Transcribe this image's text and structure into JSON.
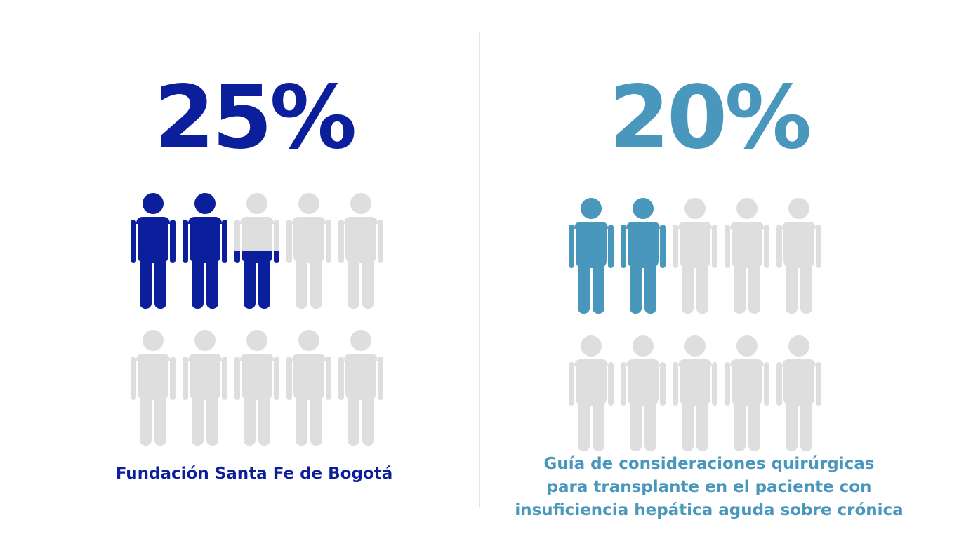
{
  "chart_data": [
    {
      "type": "pictograph",
      "values": [
        25
      ],
      "value_labels": [
        "25%"
      ],
      "color": "#0b1e9b",
      "caption": [
        "Fundación Santa Fe de Bogotá"
      ]
    },
    {
      "type": "pictograph",
      "values": [
        20
      ],
      "value_labels": [
        "20%"
      ],
      "color": "#4a97bd",
      "caption": [
        "Guía de consideraciones quirúrgicas",
        "para transplante en el paciente con",
        "insuficiencia hepática aguda sobre crónica"
      ]
    }
  ]
}
